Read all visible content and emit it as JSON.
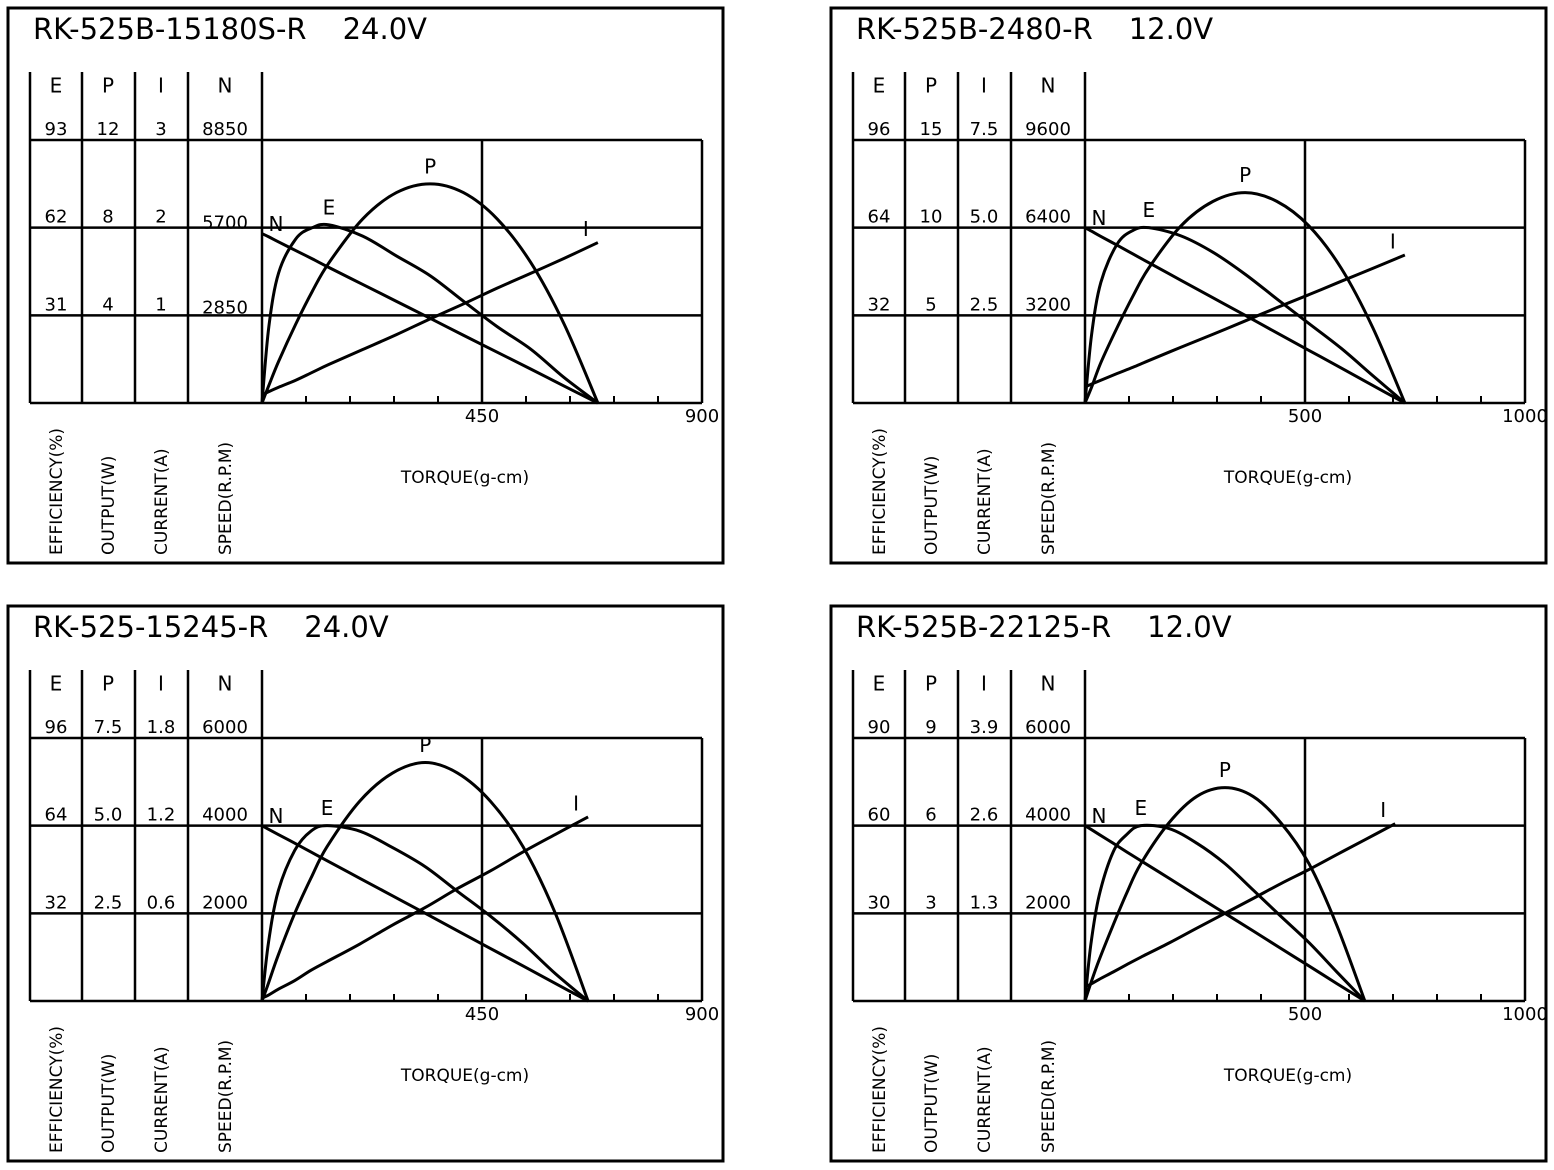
{
  "chart_data": [
    {
      "type": "line",
      "title": "RK-525B-15180S-R",
      "subtitle": "24.0V",
      "xlabel": "TORQUE(g-cm)",
      "color": "#000000",
      "xlim": [
        0,
        900
      ],
      "xticks": [
        450,
        900
      ],
      "xminorticks": [
        90,
        180,
        270,
        360,
        540,
        630,
        720,
        810
      ],
      "x": [
        0,
        14,
        34,
        69,
        103,
        137,
        206,
        275,
        344,
        412,
        481,
        550,
        618,
        687
      ],
      "series": [
        {
          "name": "E",
          "axis_label": "EFFICIENCY(%)",
          "ylim": [
            0,
            93
          ],
          "yticks": [
            31,
            62,
            93
          ],
          "values": [
            0,
            27,
            46,
            58,
            62,
            63,
            59,
            52,
            45,
            36,
            27,
            19,
            9,
            0
          ]
        },
        {
          "name": "P",
          "axis_label": "OUTPUT(W)",
          "ylim": [
            0,
            12
          ],
          "yticks": [
            4,
            8,
            12
          ],
          "values": [
            0,
            0.8,
            1.9,
            3.6,
            5.1,
            6.4,
            8.4,
            9.6,
            10.0,
            9.6,
            8.4,
            6.4,
            3.6,
            0
          ]
        },
        {
          "name": "I",
          "axis_label": "CURRENT(A)",
          "ylim": [
            0,
            3
          ],
          "yticks": [
            1,
            2,
            3
          ],
          "values": [
            0.09,
            0.13,
            0.18,
            0.26,
            0.35,
            0.44,
            0.61,
            0.78,
            0.96,
            1.13,
            1.31,
            1.48,
            1.65,
            1.83
          ]
        },
        {
          "name": "N",
          "axis_label": "SPEED(R.P.M)",
          "ylim": [
            0,
            8850
          ],
          "yticks": [
            2850,
            5700,
            8850
          ],
          "values": [
            5700,
            5590,
            5420,
            5130,
            4850,
            4560,
            3990,
            3420,
            2850,
            2280,
            1710,
            1140,
            570,
            0
          ]
        }
      ]
    },
    {
      "type": "line",
      "title": "RK-525B-2480-R",
      "subtitle": "12.0V",
      "xlabel": "TORQUE(g-cm)",
      "color": "#000000",
      "xlim": [
        0,
        1000
      ],
      "xticks": [
        500,
        1000
      ],
      "xminorticks": [
        100,
        200,
        300,
        400,
        600,
        700,
        800,
        900
      ],
      "x": [
        0,
        15,
        36,
        73,
        109,
        145,
        218,
        291,
        364,
        436,
        509,
        582,
        654,
        727
      ],
      "series": [
        {
          "name": "E",
          "axis_label": "EFFICIENCY(%)",
          "ylim": [
            0,
            96
          ],
          "yticks": [
            32,
            64,
            96
          ],
          "values": [
            0,
            25,
            44,
            58,
            63,
            64,
            61,
            55,
            47,
            38,
            29,
            20,
            10,
            0
          ]
        },
        {
          "name": "P",
          "axis_label": "OUTPUT(W)",
          "ylim": [
            0,
            15
          ],
          "yticks": [
            5,
            10,
            15
          ],
          "values": [
            0,
            0.9,
            2.3,
            4.3,
            6.1,
            7.7,
            10.1,
            11.5,
            12.0,
            11.5,
            10.1,
            7.7,
            4.3,
            0
          ]
        },
        {
          "name": "I",
          "axis_label": "CURRENT(A)",
          "ylim": [
            0,
            7.5
          ],
          "yticks": [
            2.5,
            {
              "value": 5,
              "label": "5.0"
            },
            7.5
          ],
          "values": [
            0.46,
            0.54,
            0.65,
            0.84,
            1.02,
            1.21,
            1.59,
            1.96,
            2.34,
            2.72,
            3.09,
            3.47,
            3.84,
            4.22
          ]
        },
        {
          "name": "N",
          "axis_label": "SPEED(R.P.M)",
          "ylim": [
            0,
            9600
          ],
          "yticks": [
            3200,
            6400,
            9600
          ],
          "values": [
            6400,
            6270,
            6080,
            5760,
            5440,
            5120,
            4480,
            3840,
            3200,
            2560,
            1920,
            1280,
            640,
            0
          ]
        }
      ]
    },
    {
      "type": "line",
      "title": "RK-525-15245-R",
      "subtitle": "24.0V",
      "xlabel": "TORQUE(g-cm)",
      "color": "#000000",
      "xlim": [
        0,
        900
      ],
      "xticks": [
        450,
        900
      ],
      "xminorticks": [
        90,
        180,
        270,
        360,
        540,
        630,
        720,
        810
      ],
      "x": [
        0,
        13,
        33,
        67,
        100,
        133,
        200,
        267,
        334,
        400,
        467,
        534,
        600,
        667
      ],
      "series": [
        {
          "name": "E",
          "axis_label": "EFFICIENCY(%)",
          "ylim": [
            0,
            96
          ],
          "yticks": [
            32,
            64,
            96
          ],
          "values": [
            0,
            21,
            40,
            55,
            62,
            64,
            62,
            56,
            49,
            40,
            31,
            21,
            10,
            0
          ]
        },
        {
          "name": "P",
          "axis_label": "OUTPUT(W)",
          "ylim": [
            0,
            7.5
          ],
          "yticks": [
            2.5,
            {
              "value": 5,
              "label": "5.0"
            },
            7.5
          ],
          "values": [
            0,
            0.5,
            1.3,
            2.5,
            3.5,
            4.4,
            5.7,
            6.5,
            6.8,
            6.5,
            5.7,
            4.4,
            2.5,
            0
          ]
        },
        {
          "name": "I",
          "axis_label": "CURRENT(A)",
          "ylim": [
            0,
            1.8
          ],
          "yticks": [
            0.6,
            1.2,
            1.8
          ],
          "values": [
            0.02,
            0.04,
            0.08,
            0.14,
            0.21,
            0.27,
            0.39,
            0.52,
            0.64,
            0.77,
            0.89,
            1.02,
            1.14,
            1.26
          ]
        },
        {
          "name": "N",
          "axis_label": "SPEED(R.P.M)",
          "ylim": [
            0,
            6000
          ],
          "yticks": [
            2000,
            4000,
            6000
          ],
          "values": [
            4000,
            3920,
            3800,
            3600,
            3400,
            3200,
            2800,
            2400,
            2000,
            1600,
            1200,
            800,
            400,
            0
          ]
        }
      ]
    },
    {
      "type": "line",
      "title": "RK-525B-22125-R",
      "subtitle": "12.0V",
      "xlabel": "TORQUE(g-cm)",
      "color": "#000000",
      "xlim": [
        0,
        1000
      ],
      "xticks": [
        500,
        1000
      ],
      "xminorticks": [
        100,
        200,
        300,
        400,
        600,
        700,
        800,
        900
      ],
      "x": [
        0,
        13,
        32,
        64,
        95,
        127,
        191,
        254,
        318,
        382,
        445,
        509,
        572,
        636,
        705
      ],
      "series": [
        {
          "name": "E",
          "axis_label": "EFFICIENCY(%)",
          "ylim": [
            0,
            90
          ],
          "yticks": [
            30,
            60,
            90
          ],
          "values": [
            0,
            19,
            36,
            51,
            57,
            60,
            59,
            54,
            47,
            38,
            29,
            20,
            10,
            0,
            null
          ]
        },
        {
          "name": "P",
          "axis_label": "OUTPUT(W)",
          "ylim": [
            0,
            9
          ],
          "yticks": [
            3,
            6,
            9
          ],
          "values": [
            0,
            0.6,
            1.4,
            2.6,
            3.7,
            4.7,
            6.1,
            7.0,
            7.3,
            7.0,
            6.1,
            4.7,
            2.6,
            0,
            null
          ]
        },
        {
          "name": "I",
          "axis_label": "CURRENT(A)",
          "ylim": [
            0,
            3.9
          ],
          "yticks": [
            1.3,
            2.6,
            3.9
          ],
          "values": [
            0.21,
            0.25,
            0.32,
            0.43,
            0.54,
            0.65,
            0.86,
            1.08,
            1.3,
            1.52,
            1.74,
            1.95,
            2.17,
            2.39,
            2.63
          ]
        },
        {
          "name": "N",
          "axis_label": "SPEED(R.P.M)",
          "ylim": [
            0,
            6000
          ],
          "yticks": [
            2000,
            4000,
            6000
          ],
          "values": [
            4000,
            3920,
            3800,
            3600,
            3400,
            3200,
            2800,
            2400,
            2000,
            1600,
            1200,
            800,
            400,
            0,
            null
          ]
        }
      ]
    }
  ]
}
